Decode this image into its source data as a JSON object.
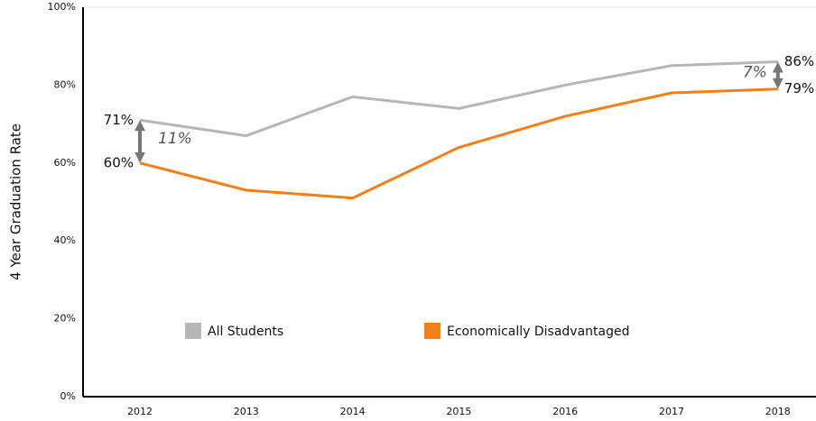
{
  "chart_data": {
    "type": "line",
    "ylabel": "4 Year Graduation Rate",
    "categories": [
      "2012",
      "2013",
      "2014",
      "2015",
      "2016",
      "2017",
      "2018"
    ],
    "series": [
      {
        "name": "All Students",
        "color": "#b4b7b5",
        "values": [
          71,
          67,
          77,
          74,
          80,
          85,
          86
        ],
        "value_labels": [
          "71%",
          null,
          null,
          null,
          null,
          null,
          "86%"
        ]
      },
      {
        "name": "Economically Disadvantaged",
        "color": "#f57f17",
        "values": [
          60,
          53,
          51,
          64,
          72,
          78,
          79
        ],
        "value_labels": [
          "60%",
          null,
          null,
          null,
          null,
          null,
          "79%"
        ]
      }
    ],
    "annotations": [
      "11%",
      "7%"
    ],
    "ylim": [
      0,
      100
    ],
    "yticks": [
      {
        "value": 0,
        "label": "0%"
      },
      {
        "value": 20,
        "label": "20%"
      },
      {
        "value": 40,
        "label": "40%"
      },
      {
        "value": 60,
        "label": "60%"
      },
      {
        "value": 80,
        "label": "80%"
      },
      {
        "value": 100,
        "label": "100%"
      }
    ]
  }
}
